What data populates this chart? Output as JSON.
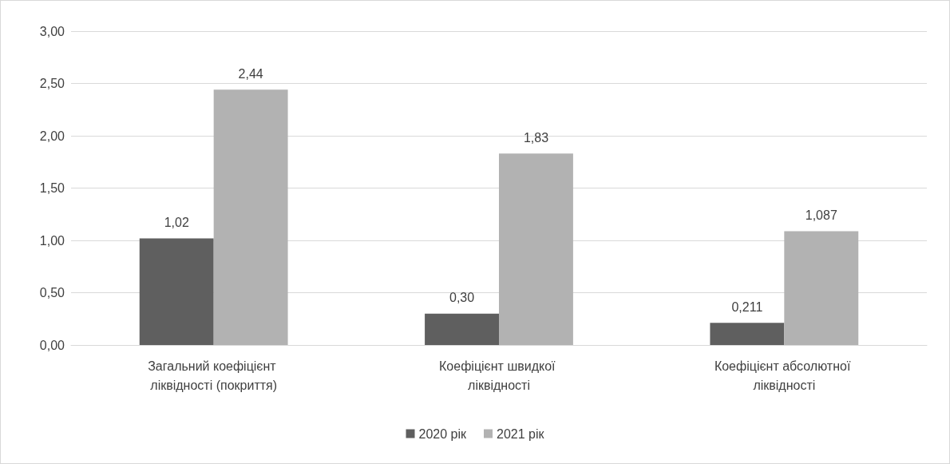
{
  "chart_data": {
    "type": "bar",
    "categories": [
      "Загальний коефіцієнт ліквідності (покриття)",
      "Коефіцієнт швидкої ліквідності",
      "Коефіцієнт абсолютної ліквідності"
    ],
    "series": [
      {
        "name": "2020 рік",
        "color": "#5f5f5f",
        "values": [
          1.02,
          0.3,
          0.211
        ],
        "value_labels": [
          "1,02",
          "0,30",
          "0,211"
        ]
      },
      {
        "name": "2021 рік",
        "color": "#b2b2b2",
        "values": [
          2.44,
          1.83,
          1.087
        ],
        "value_labels": [
          "2,44",
          "1,83",
          "1,087"
        ]
      }
    ],
    "ylim": [
      0,
      3
    ],
    "yticks": [
      {
        "value": 0,
        "label": "0,00"
      },
      {
        "value": 0.5,
        "label": "0,50"
      },
      {
        "value": 1,
        "label": "1,00"
      },
      {
        "value": 1.5,
        "label": "1,50"
      },
      {
        "value": 2,
        "label": "2,00"
      },
      {
        "value": 2.5,
        "label": "2,50"
      },
      {
        "value": 3,
        "label": "3,00"
      }
    ],
    "grid": "y",
    "legend": "bottom"
  }
}
